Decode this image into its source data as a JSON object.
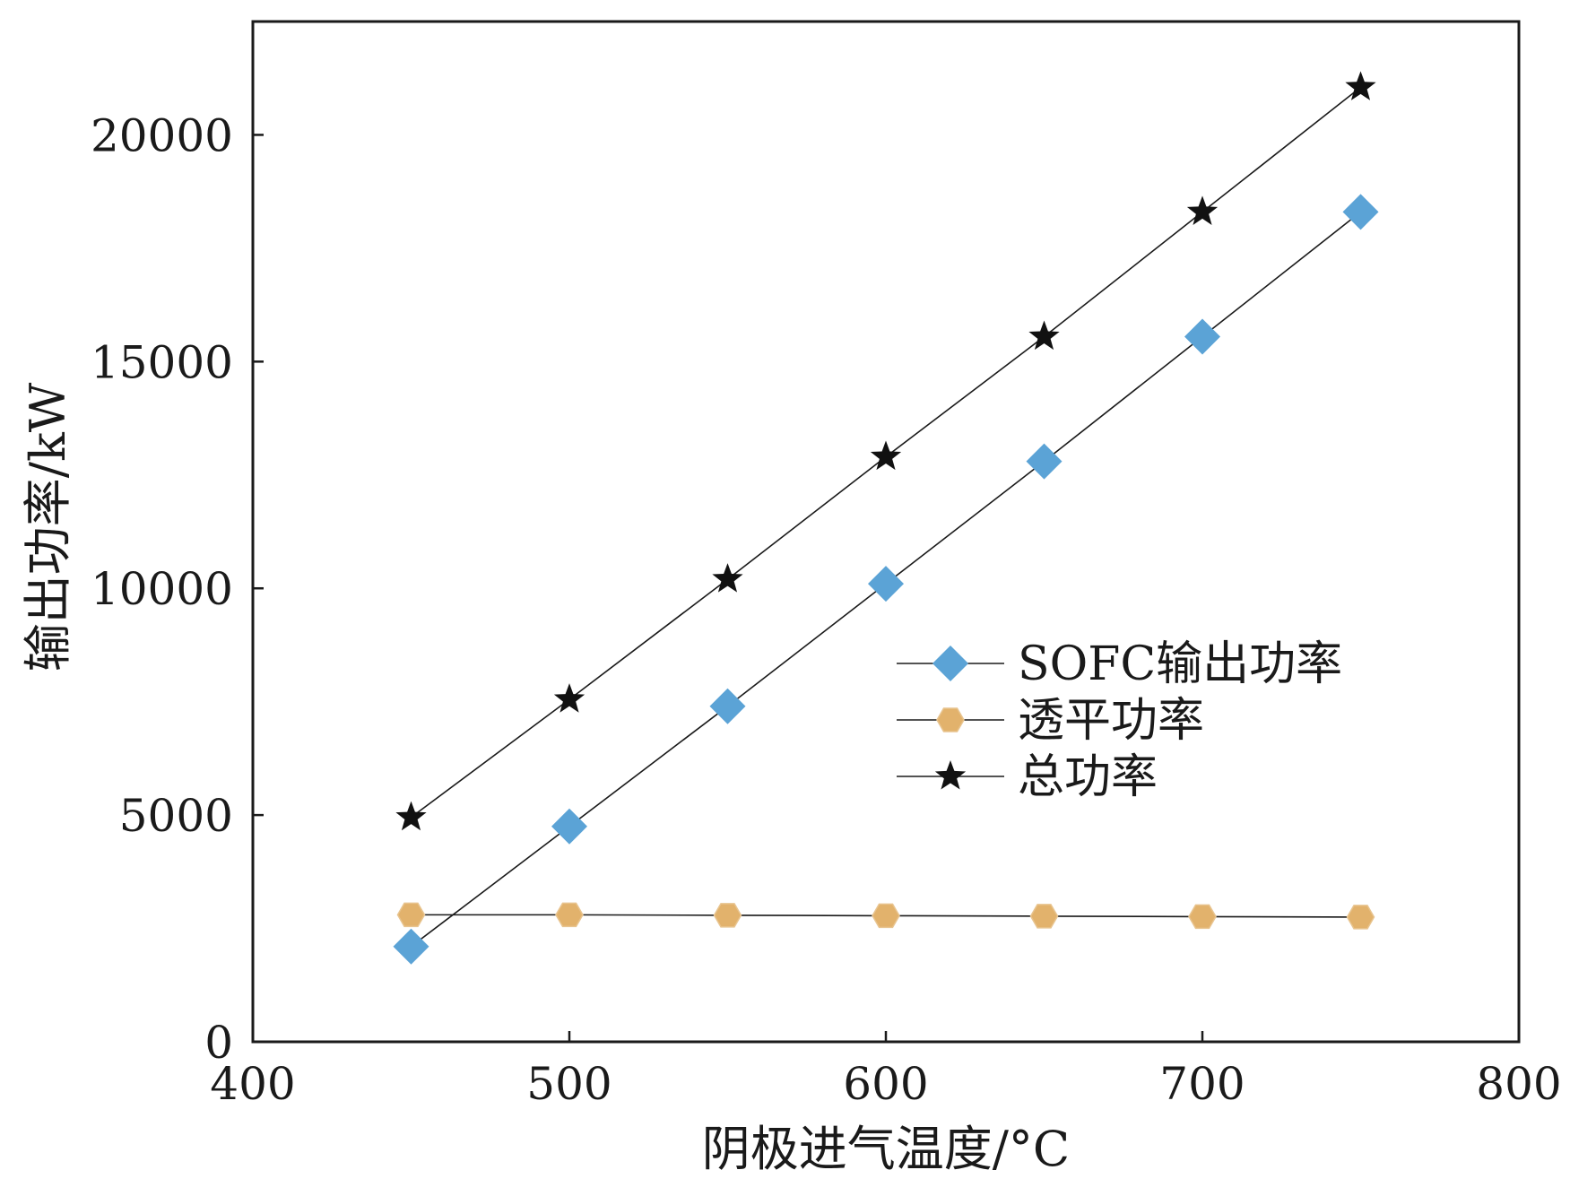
{
  "chart_data": {
    "type": "line",
    "title": "",
    "xlabel": "阴极进气温度/°C",
    "ylabel": "输出功率/kW",
    "xlim": [
      400,
      800
    ],
    "ylim": [
      0,
      22500
    ],
    "x_ticks": [
      400,
      500,
      600,
      700,
      800
    ],
    "y_ticks": [
      0,
      5000,
      10000,
      15000,
      20000
    ],
    "x_tick_labels": [
      "400",
      "500",
      "600",
      "700",
      "800"
    ],
    "y_tick_labels": [
      "0",
      "5000",
      "10000",
      "15000",
      "20000"
    ],
    "grid": false,
    "legend_position": "center-right",
    "x": [
      450,
      500,
      550,
      600,
      650,
      700,
      750
    ],
    "series": [
      {
        "name": "SOFC输出功率",
        "marker": "diamond",
        "color": "#5ba3d6",
        "values": [
          2100,
          4750,
          7400,
          10100,
          12800,
          15550,
          18300
        ]
      },
      {
        "name": "透平功率",
        "marker": "hexagon",
        "color": "#e2b26c",
        "values": [
          2800,
          2800,
          2790,
          2780,
          2770,
          2760,
          2750
        ]
      },
      {
        "name": "总功率",
        "marker": "star",
        "color": "#111111",
        "values": [
          4950,
          7550,
          10200,
          12900,
          15550,
          18300,
          21050
        ]
      }
    ]
  }
}
